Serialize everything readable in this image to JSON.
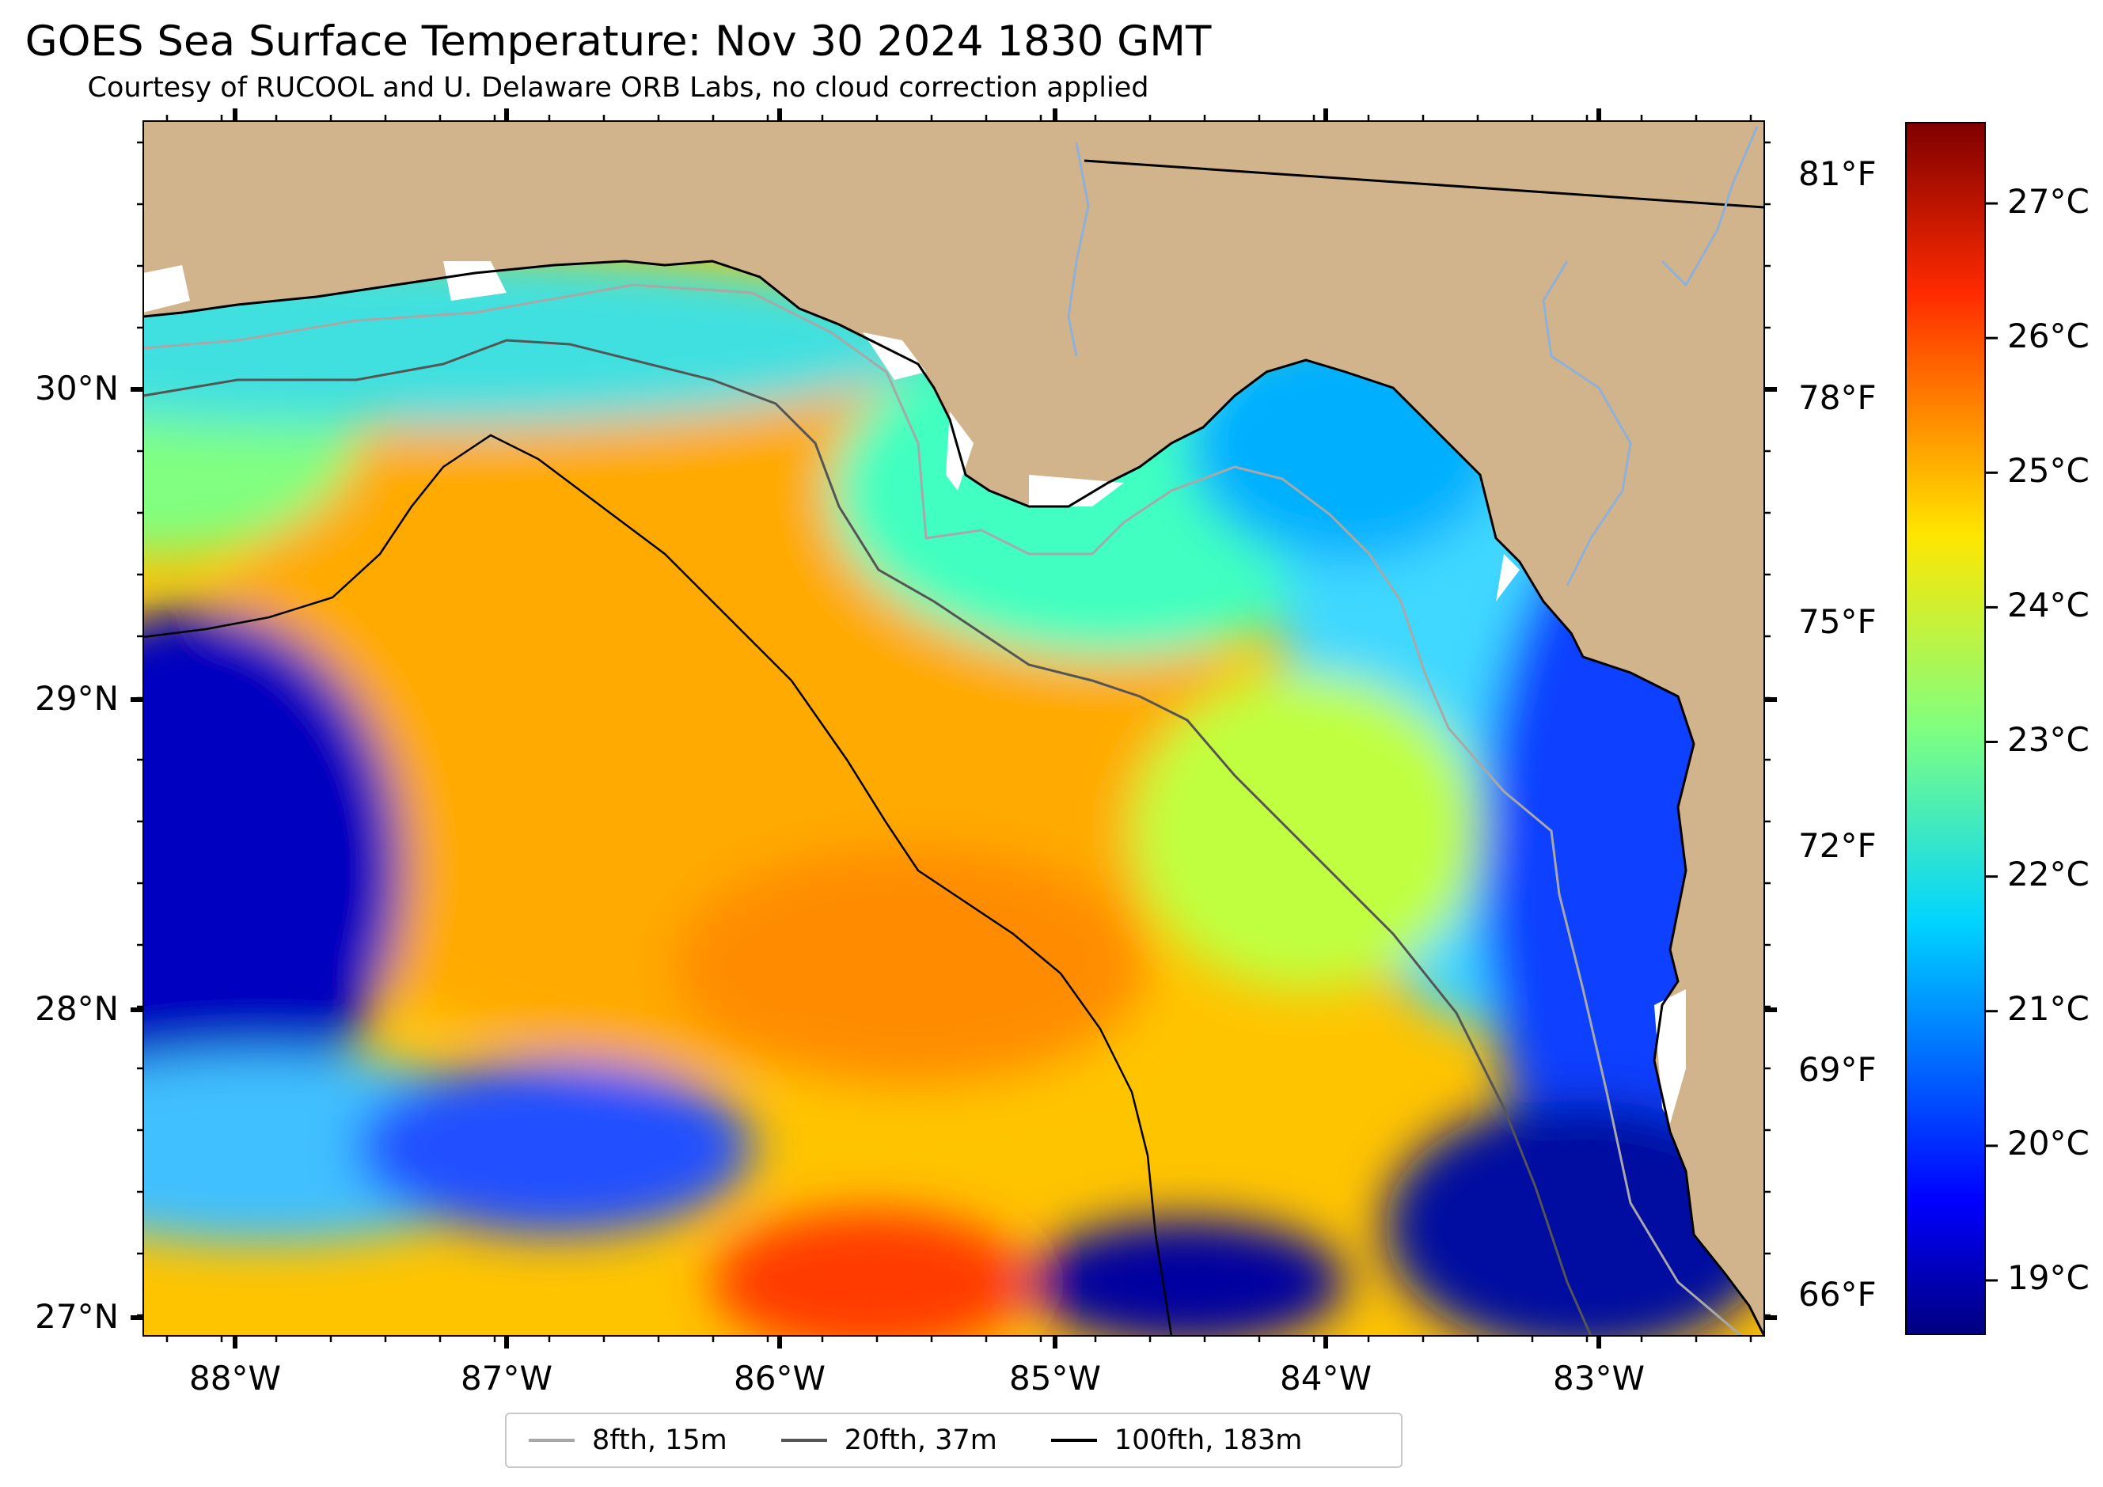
{
  "title": "GOES Sea Surface Temperature: Nov 30 2024 1830 GMT",
  "subtitle": "Courtesy of RUCOOL and U. Delaware ORB Labs, no cloud correction applied",
  "longitude_labels": [
    "88°W",
    "87°W",
    "86°W",
    "85°W",
    "84°W",
    "83°W"
  ],
  "latitude_labels": [
    "30°N",
    "29°N",
    "28°N",
    "27°N"
  ],
  "fahrenheit_labels": [
    "81°F",
    "78°F",
    "75°F",
    "72°F",
    "69°F",
    "66°F"
  ],
  "colorbar": {
    "colormap": "jet",
    "min_c": 18.6,
    "max_c": 27.6,
    "labels": [
      "27°C",
      "26°C",
      "25°C",
      "24°C",
      "23°C",
      "22°C",
      "21°C",
      "20°C",
      "19°C"
    ]
  },
  "colors": {
    "land": "#d2b48c",
    "coast": "#000000",
    "river": "#8fb0d8",
    "cloud_mask": "#ffffff"
  },
  "legend": {
    "items": [
      {
        "label": "8fth, 15m",
        "color": "#a8a8a8"
      },
      {
        "label": "20fth, 37m",
        "color": "#555555"
      },
      {
        "label": "100fth, 183m",
        "color": "#000000"
      }
    ]
  }
}
